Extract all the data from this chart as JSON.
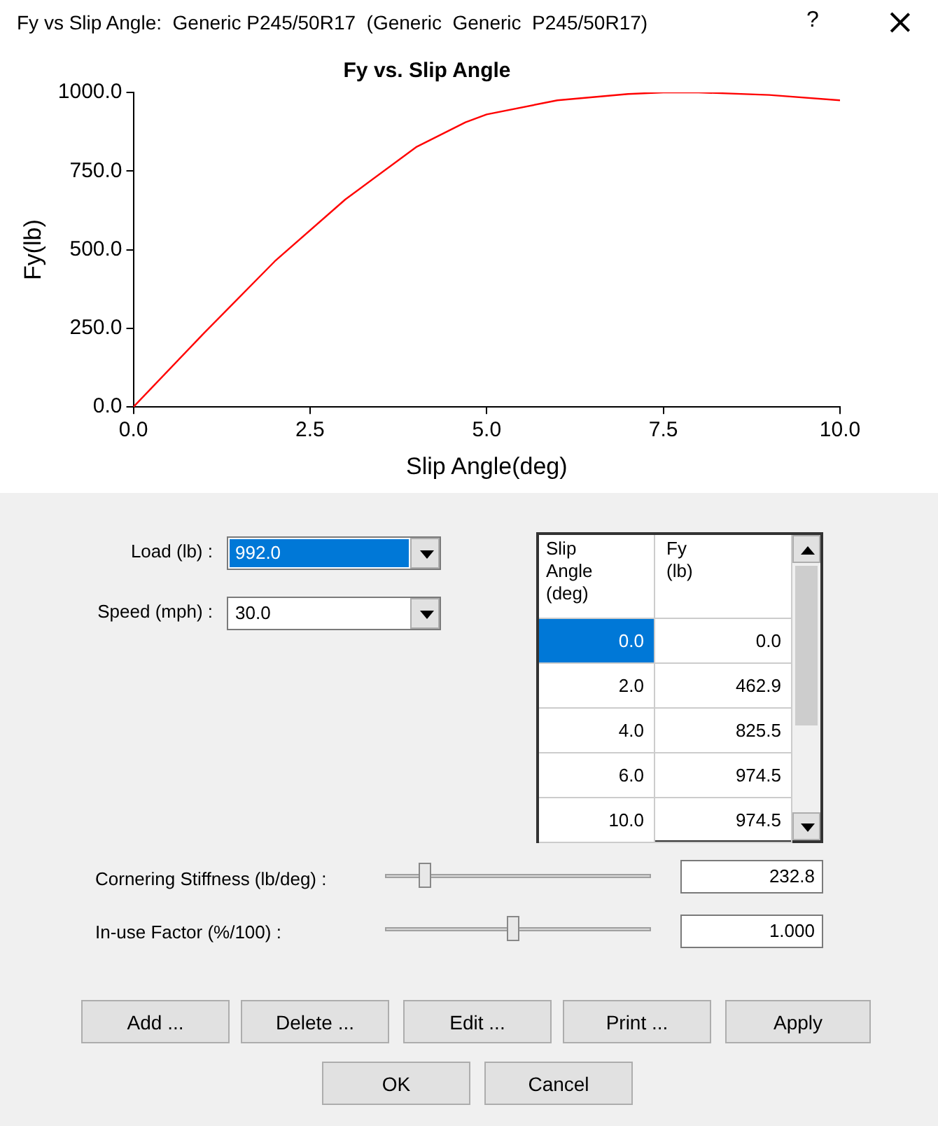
{
  "chart_data": {
    "type": "line",
    "title": "Fy vs. Slip Angle",
    "xlabel": "Slip Angle(deg)",
    "ylabel": "Fy(lb)",
    "x": [
      0,
      1,
      2,
      3,
      4,
      4.7,
      5,
      6,
      7,
      7.5,
      8,
      9,
      10
    ],
    "series": [
      {
        "color": "#ff0000",
        "values": [
          0,
          235,
          463,
          660,
          826,
          905,
          930,
          975,
          995,
          1000,
          1000,
          992,
          975
        ]
      }
    ],
    "xlim": [
      0,
      10
    ],
    "ylim": [
      0,
      1000
    ],
    "xticks": [
      {
        "value": 0,
        "label": "0.0"
      },
      {
        "value": 2.5,
        "label": "2.5"
      },
      {
        "value": 5,
        "label": "5.0"
      },
      {
        "value": 7.5,
        "label": "7.5"
      },
      {
        "value": 10,
        "label": "10.0"
      }
    ],
    "yticks": [
      {
        "value": 0,
        "label": "0.0"
      },
      {
        "value": 250,
        "label": "250.0"
      },
      {
        "value": 500,
        "label": "500.0"
      },
      {
        "value": 750,
        "label": "750.0"
      },
      {
        "value": 1000,
        "label": "1000.0"
      }
    ],
    "grid": false,
    "legend": false,
    "marker": "none",
    "line_style": "solid",
    "annotations": [
      "Fy vs Slip Angle:  Generic P245/50R17  (Generic  Generic  P245/50R17)",
      "?",
      "Load (lb) :",
      "992.0",
      "Speed (mph) :",
      "30.0",
      "Slip Angle (deg)",
      "Fy (lb)",
      "0.0",
      "0.0",
      "2.0",
      "462.9",
      "4.0",
      "825.5",
      "6.0",
      "974.5",
      "10.0",
      "974.5",
      "Cornering Stiffness (lb/deg) :",
      "232.8",
      "In-use Factor (%/100) :",
      "1.000",
      "Add ...",
      "Delete ...",
      "Edit ...",
      "Print ...",
      "Apply",
      "OK",
      "Cancel"
    ]
  }
}
